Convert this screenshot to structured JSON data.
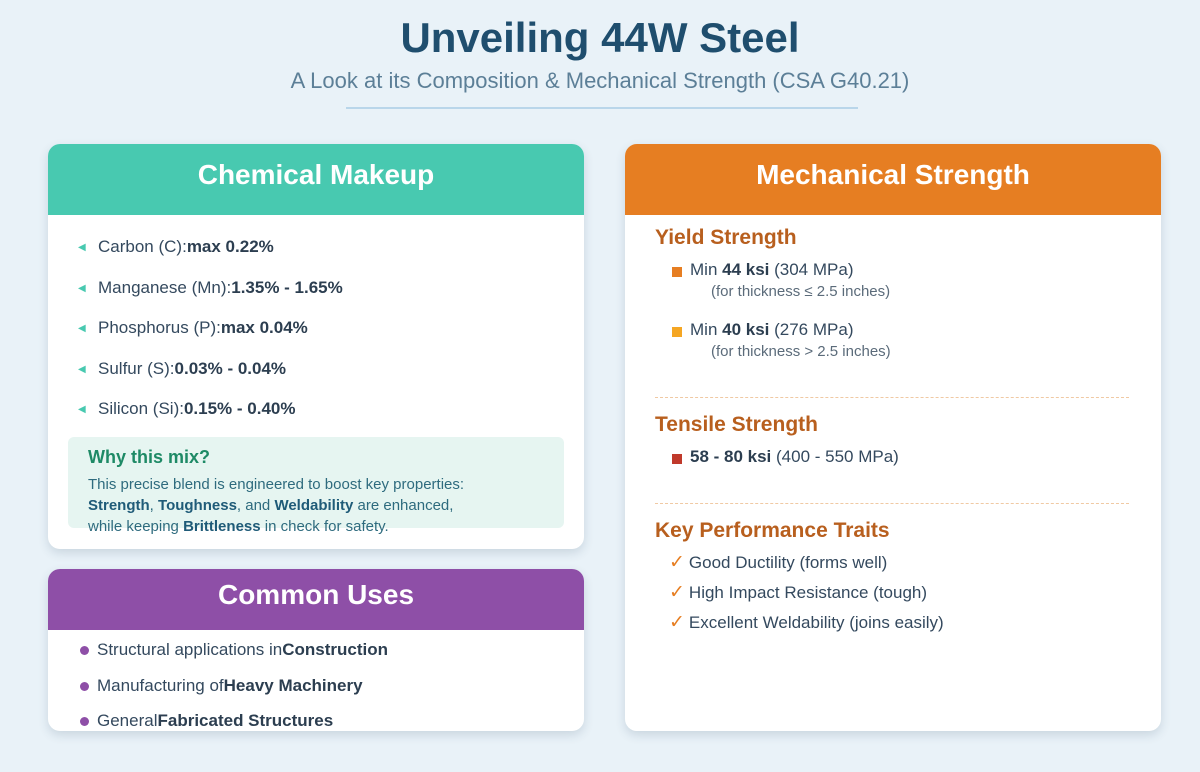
{
  "header": {
    "title": "Unveiling 44W Steel",
    "subtitle": "A Look at its Composition & Mechanical Strength (CSA G40.21)"
  },
  "chemical": {
    "heading": "Chemical Makeup",
    "items": [
      {
        "label": "Carbon (C): ",
        "value": "max 0.22%"
      },
      {
        "label": "Manganese (Mn): ",
        "value": "1.35% - 1.65%"
      },
      {
        "label": "Phosphorus (P): ",
        "value": "max 0.04%"
      },
      {
        "label": "Sulfur (S): ",
        "value": "0.03% - 0.04%"
      },
      {
        "label": "Silicon (Si): ",
        "value": "0.15% - 0.40%"
      }
    ],
    "why": {
      "title": "Why this mix?",
      "line1": "This precise blend is engineered to boost key properties:",
      "strength": "Strength",
      "sep1": ", ",
      "toughness": "Toughness",
      "sep2": ", and ",
      "weldability": "Weldability",
      "enhanced": " are enhanced,",
      "keeping": "while keeping ",
      "brittleness": "Brittleness",
      "check": " in check for safety."
    }
  },
  "uses": {
    "heading": "Common Uses",
    "items": [
      {
        "text": "Structural applications in ",
        "bold": "Construction"
      },
      {
        "text": "Manufacturing of ",
        "bold": "Heavy Machinery"
      },
      {
        "text": "General ",
        "bold": "Fabricated Structures"
      }
    ]
  },
  "mechanical": {
    "heading": "Mechanical Strength",
    "yield": {
      "title": "Yield Strength",
      "items": [
        {
          "prefix": "Min ",
          "bold": "44 ksi",
          "suffix": " (304 MPa)",
          "note": "(for thickness ≤ 2.5 inches)",
          "color": "#e67e22"
        },
        {
          "prefix": "Min ",
          "bold": "40 ksi",
          "suffix": " (276 MPa)",
          "note": "(for thickness > 2.5 inches)",
          "color": "#f5a623"
        }
      ]
    },
    "tensile": {
      "title": "Tensile Strength",
      "bold": "58 - 80 ksi",
      "suffix": " (400 - 550 MPa)",
      "color": "#c0392b"
    },
    "traits": {
      "title": "Key Performance Traits",
      "check": "✓",
      "items": [
        "Good Ductility (forms well)",
        "High Impact Resistance (tough)",
        "Excellent Weldability (joins easily)"
      ]
    }
  }
}
